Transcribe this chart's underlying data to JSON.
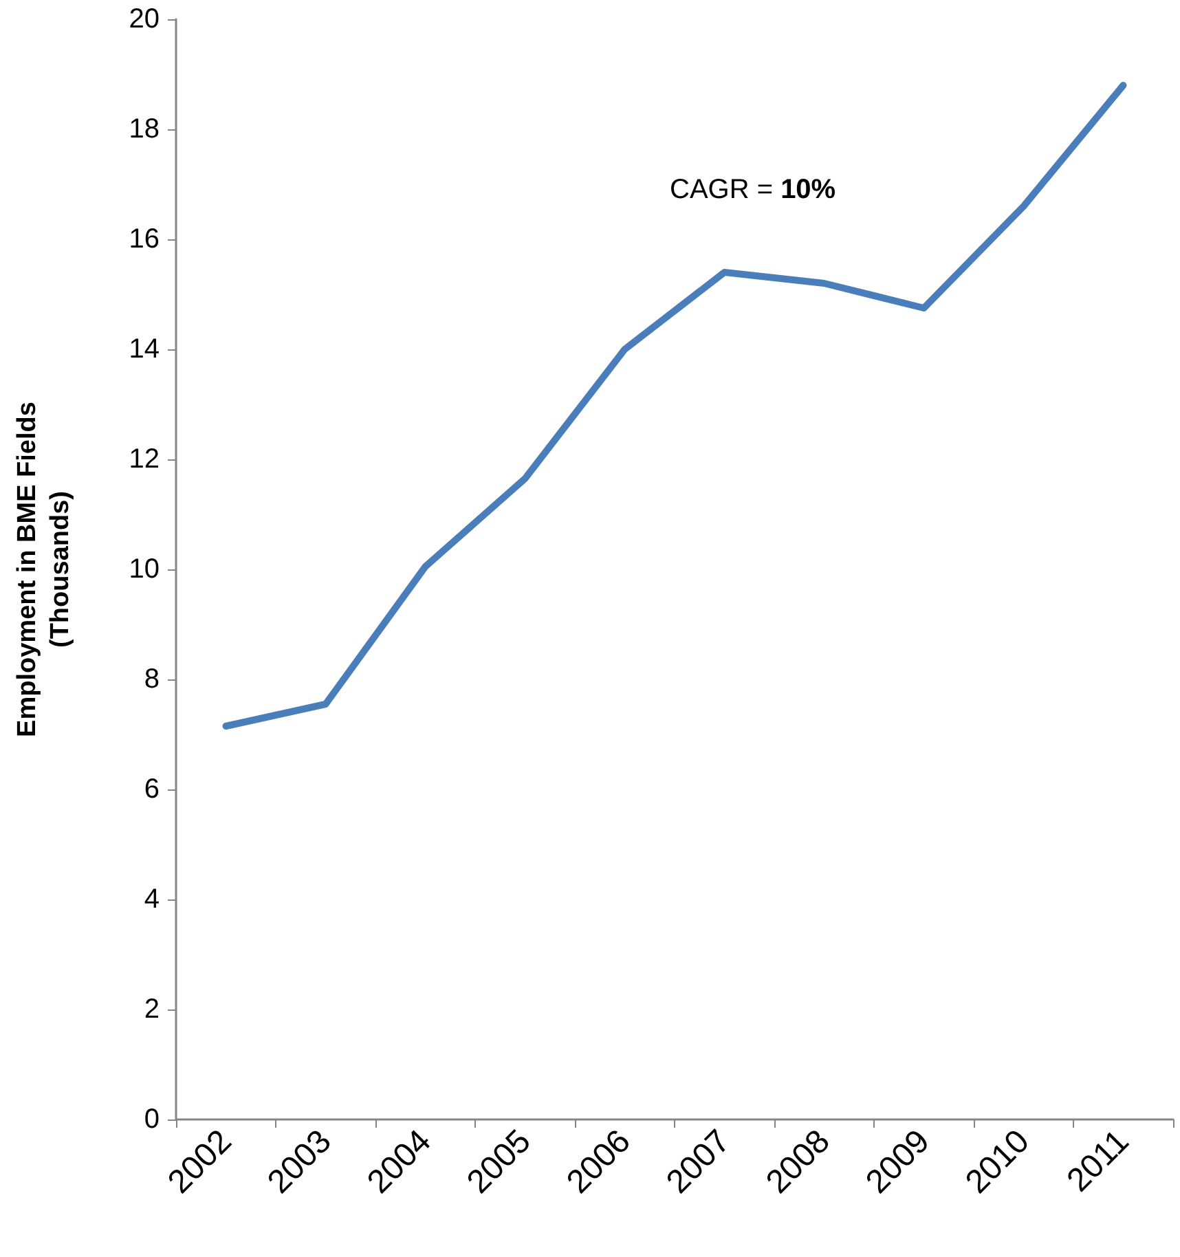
{
  "chart_data": {
    "type": "line",
    "ylabel": "Employment in BME Fields (Thousands)",
    "categories": [
      "2002",
      "2003",
      "2004",
      "2005",
      "2006",
      "2007",
      "2008",
      "2009",
      "2010",
      "2011"
    ],
    "series": [
      {
        "color": "#4a7ebb",
        "values": [
          7.15,
          7.55,
          10.05,
          11.65,
          14.0,
          15.4,
          15.2,
          14.75,
          16.6,
          18.8
        ]
      }
    ],
    "ylim": [
      0,
      20
    ],
    "yticks": [
      0,
      2,
      4,
      6,
      8,
      10,
      12,
      14,
      16,
      18,
      20
    ],
    "grid": false,
    "marker": "none",
    "line_style": "solid",
    "annotations": [
      "CAGR = 10%"
    ]
  }
}
